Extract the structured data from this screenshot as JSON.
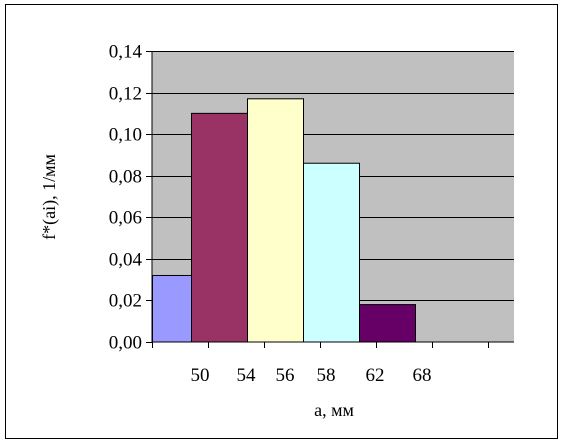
{
  "chart_data": {
    "type": "bar",
    "title": "",
    "xlabel": "a, мм",
    "ylabel": "f*(ai), 1/мм",
    "x_tick_labels": [
      "50",
      "54",
      "56",
      "58",
      "62",
      "68"
    ],
    "y_tick_labels": [
      "0,00",
      "0,02",
      "0,04",
      "0,06",
      "0,08",
      "0,10",
      "0,12",
      "0,14"
    ],
    "ylim": [
      0,
      0.14
    ],
    "grid": true,
    "legend": "none",
    "plot_background": "#c0c0c0",
    "bars": [
      {
        "from": 50,
        "to": 54,
        "value": 0.032,
        "color": "#9999ff"
      },
      {
        "from": 54,
        "to": 56,
        "value": 0.11,
        "color": "#993366"
      },
      {
        "from": 56,
        "to": 58,
        "value": 0.117,
        "color": "#ffffcc"
      },
      {
        "from": 58,
        "to": 62,
        "value": 0.086,
        "color": "#ccffff"
      },
      {
        "from": 62,
        "to": 68,
        "value": 0.018,
        "color": "#660066"
      }
    ]
  }
}
